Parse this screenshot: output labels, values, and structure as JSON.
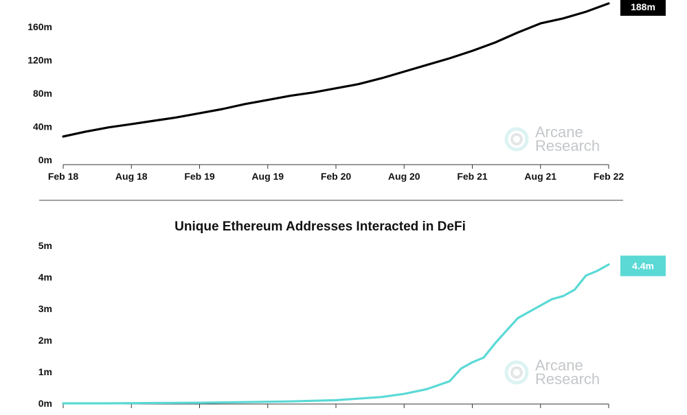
{
  "chart_data": [
    {
      "type": "line",
      "title": "",
      "xlabel": "",
      "ylabel": "",
      "x_ticks": [
        "Feb 18",
        "Aug 18",
        "Feb 19",
        "Aug 19",
        "Feb 20",
        "Aug 20",
        "Feb 21",
        "Aug 21",
        "Feb 22"
      ],
      "y_ticks": [
        "0m",
        "40m",
        "80m",
        "120m",
        "160m"
      ],
      "ylim": [
        0,
        188
      ],
      "y_unit": "millions",
      "grid": false,
      "legend": "none",
      "line_color": "#000000",
      "end_label": "188m",
      "end_label_bg": "#000000",
      "watermark": [
        "Arcane",
        "Research"
      ],
      "series": [
        {
          "x": [
            "2018-02",
            "2018-04",
            "2018-06",
            "2018-08",
            "2018-10",
            "2018-12",
            "2019-02",
            "2019-04",
            "2019-06",
            "2019-08",
            "2019-10",
            "2019-12",
            "2020-02",
            "2020-04",
            "2020-06",
            "2020-08",
            "2020-10",
            "2020-12",
            "2021-02",
            "2021-04",
            "2021-06",
            "2021-08",
            "2021-10",
            "2021-12",
            "2022-02"
          ],
          "values": [
            28,
            34,
            39,
            43,
            47,
            51,
            56,
            61,
            67,
            72,
            77,
            81,
            86,
            91,
            98,
            106,
            114,
            122,
            131,
            141,
            153,
            164,
            170,
            178,
            188
          ]
        }
      ]
    },
    {
      "type": "line",
      "title": "Unique Ethereum Addresses Interacted in DeFi",
      "xlabel": "",
      "ylabel": "",
      "y_ticks": [
        "0m",
        "1m",
        "2m",
        "3m",
        "4m",
        "5m"
      ],
      "ylim": [
        0,
        5
      ],
      "y_unit": "millions",
      "grid": false,
      "legend": "none",
      "line_color": "#5ad9d5",
      "end_label": "4.4m",
      "end_label_bg": "#5ad9d5",
      "watermark": [
        "Arcane",
        "Research"
      ],
      "series": [
        {
          "x": [
            "2018-02",
            "2018-06",
            "2018-10",
            "2019-02",
            "2019-06",
            "2019-10",
            "2020-02",
            "2020-06",
            "2020-08",
            "2020-10",
            "2020-12",
            "2021-01",
            "2021-02",
            "2021-03",
            "2021-04",
            "2021-05",
            "2021-06",
            "2021-07",
            "2021-08",
            "2021-09",
            "2021-10",
            "2021-11",
            "2021-12",
            "2022-01",
            "2022-02"
          ],
          "values": [
            0.0,
            0.0,
            0.01,
            0.02,
            0.04,
            0.06,
            0.1,
            0.2,
            0.3,
            0.45,
            0.7,
            1.1,
            1.3,
            1.45,
            1.9,
            2.3,
            2.7,
            2.9,
            3.1,
            3.3,
            3.4,
            3.6,
            4.05,
            4.2,
            4.4
          ]
        }
      ]
    }
  ]
}
